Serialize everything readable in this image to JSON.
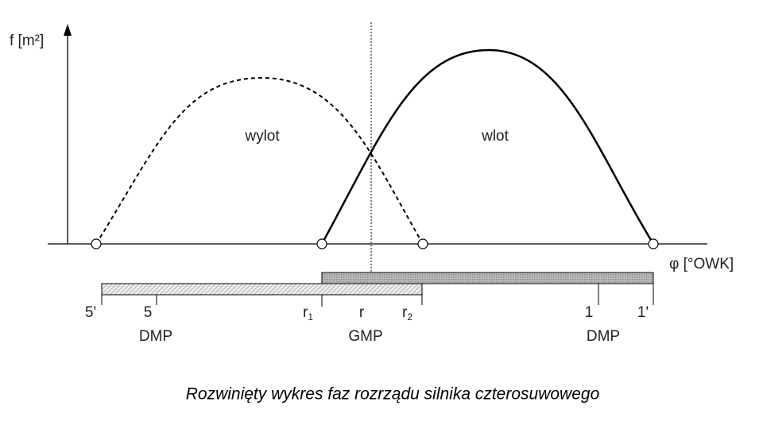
{
  "y_axis_label": "f [m²]",
  "x_axis_label": "φ [°OWK]",
  "curves": [
    {
      "label": "wylot"
    },
    {
      "label": "wlot"
    }
  ],
  "marks": [
    {
      "label": "5'"
    },
    {
      "label": "5",
      "position": "DMP"
    },
    {
      "label": "r",
      "sub": "1"
    },
    {
      "label": "r",
      "position": "GMP"
    },
    {
      "label": "r",
      "sub": "2"
    },
    {
      "label": "1",
      "position": "DMP"
    },
    {
      "label": "1'"
    }
  ],
  "caption": "Rozwinięty wykres faz rozrządu silnika czterosuwowego"
}
